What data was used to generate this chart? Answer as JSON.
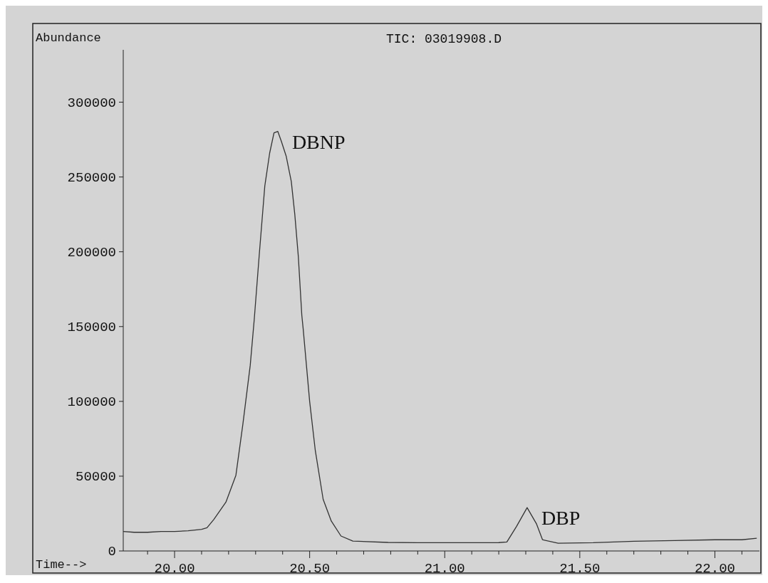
{
  "chart_data": {
    "type": "line",
    "title": "TIC: 03019908.D",
    "xlabel": "Time-->",
    "ylabel": "Abundance",
    "xlim": [
      19.81,
      22.165
    ],
    "ylim": [
      0,
      335000
    ],
    "xticks": [
      {
        "value": 19.9,
        "label": null
      },
      {
        "value": 20,
        "label": "20.00"
      },
      {
        "value": 20.1,
        "label": null
      },
      {
        "value": 20.2,
        "label": null
      },
      {
        "value": 20.3,
        "label": null
      },
      {
        "value": 20.4,
        "label": null
      },
      {
        "value": 20.5,
        "label": "20.50"
      },
      {
        "value": 20.6,
        "label": null
      },
      {
        "value": 20.7,
        "label": null
      },
      {
        "value": 20.8,
        "label": null
      },
      {
        "value": 20.9,
        "label": null
      },
      {
        "value": 21,
        "label": "21.00"
      },
      {
        "value": 21.1,
        "label": null
      },
      {
        "value": 21.2,
        "label": null
      },
      {
        "value": 21.3,
        "label": null
      },
      {
        "value": 21.4,
        "label": null
      },
      {
        "value": 21.5,
        "label": "21.50"
      },
      {
        "value": 21.6,
        "label": null
      },
      {
        "value": 21.7,
        "label": null
      },
      {
        "value": 21.8,
        "label": null
      },
      {
        "value": 21.9,
        "label": null
      },
      {
        "value": 22,
        "label": "22.00"
      },
      {
        "value": 22.1,
        "label": null
      }
    ],
    "yticks": [
      0,
      50000,
      100000,
      150000,
      200000,
      250000,
      300000
    ],
    "series": [
      {
        "color": "#333333",
        "x": [
          19.81,
          19.85,
          19.9,
          19.95,
          20.0,
          20.05,
          20.1,
          20.12,
          20.145,
          20.19,
          20.227,
          20.253,
          20.28,
          20.295,
          20.313,
          20.334,
          20.352,
          20.368,
          20.382,
          20.395,
          20.413,
          20.432,
          20.445,
          20.458,
          20.471,
          20.476,
          20.5,
          20.521,
          20.55,
          20.58,
          20.616,
          20.66,
          20.79,
          20.9,
          21.0,
          21.1,
          21.2,
          21.23,
          21.266,
          21.305,
          21.34,
          21.362,
          21.42,
          21.55,
          21.7,
          21.85,
          22.0,
          22.1,
          22.155
        ],
        "values": [
          13000,
          12500,
          12500,
          13000,
          13000,
          13500,
          14500,
          15500,
          21000,
          32600,
          50600,
          85000,
          124000,
          155000,
          197000,
          244000,
          266000,
          279500,
          280500,
          274000,
          264000,
          247000,
          225000,
          197000,
          157500,
          148500,
          100000,
          67000,
          34500,
          20000,
          10000,
          6600,
          5700,
          5500,
          5500,
          5500,
          5600,
          6000,
          16500,
          29000,
          18000,
          7500,
          5200,
          5500,
          6500,
          7000,
          7500,
          7500,
          8500
        ]
      }
    ],
    "annotations": [
      {
        "text": "DBNP",
        "x": 20.382,
        "y": 280500
      },
      {
        "text": "DBP",
        "x": 21.305,
        "y": 29000
      }
    ]
  }
}
